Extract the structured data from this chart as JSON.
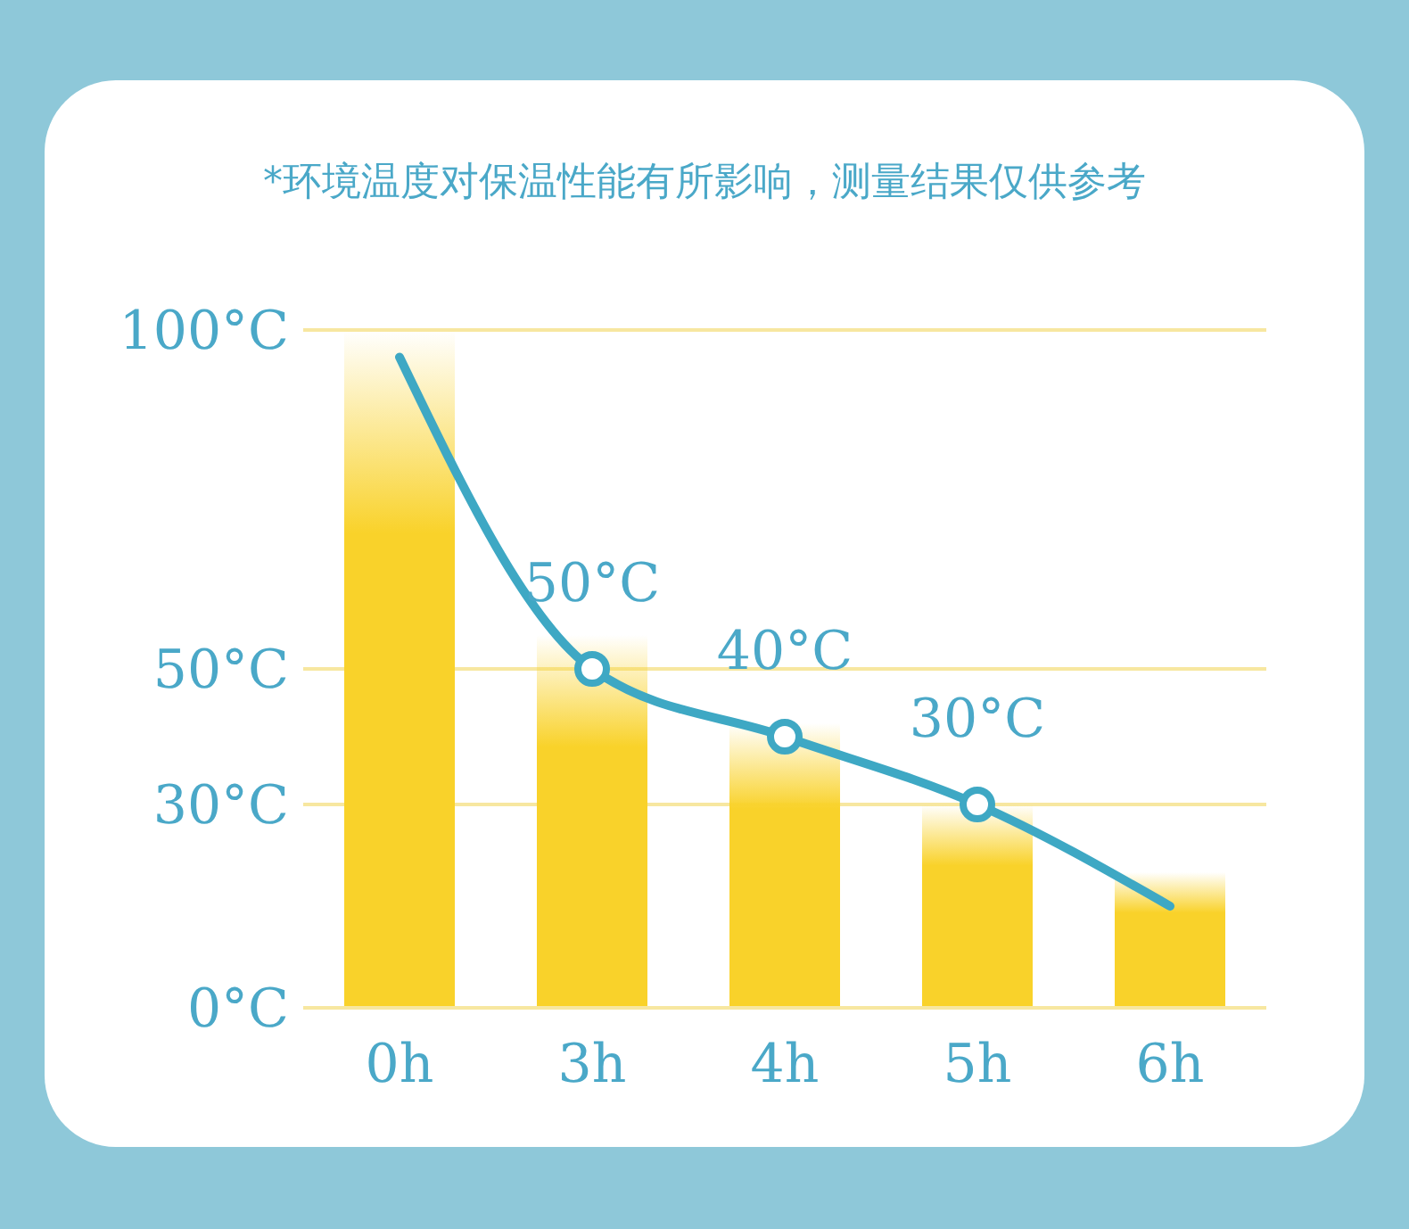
{
  "chart_data": {
    "type": "bar",
    "title": "*环境温度对保温性能有所影响，测量结果仅供参考",
    "categories": [
      "0h",
      "3h",
      "4h",
      "5h",
      "6h"
    ],
    "series": [
      {
        "color": "#f9d22a",
        "values": [
          100,
          55,
          42,
          30,
          20
        ]
      },
      {
        "type": "line",
        "color": "#3ea8c4",
        "values": [
          96,
          50,
          40,
          30,
          15
        ],
        "value_labels": [
          null,
          "50°C",
          "40°C",
          "30°C",
          null
        ]
      }
    ],
    "ylim": [
      0,
      100
    ],
    "yticks": [
      {
        "value": 0,
        "label": "0°C"
      },
      {
        "value": 30,
        "label": "30°C"
      },
      {
        "value": 50,
        "label": "50°C"
      },
      {
        "value": 100,
        "label": "100°C"
      }
    ],
    "grid": "y",
    "marker": "circle"
  }
}
